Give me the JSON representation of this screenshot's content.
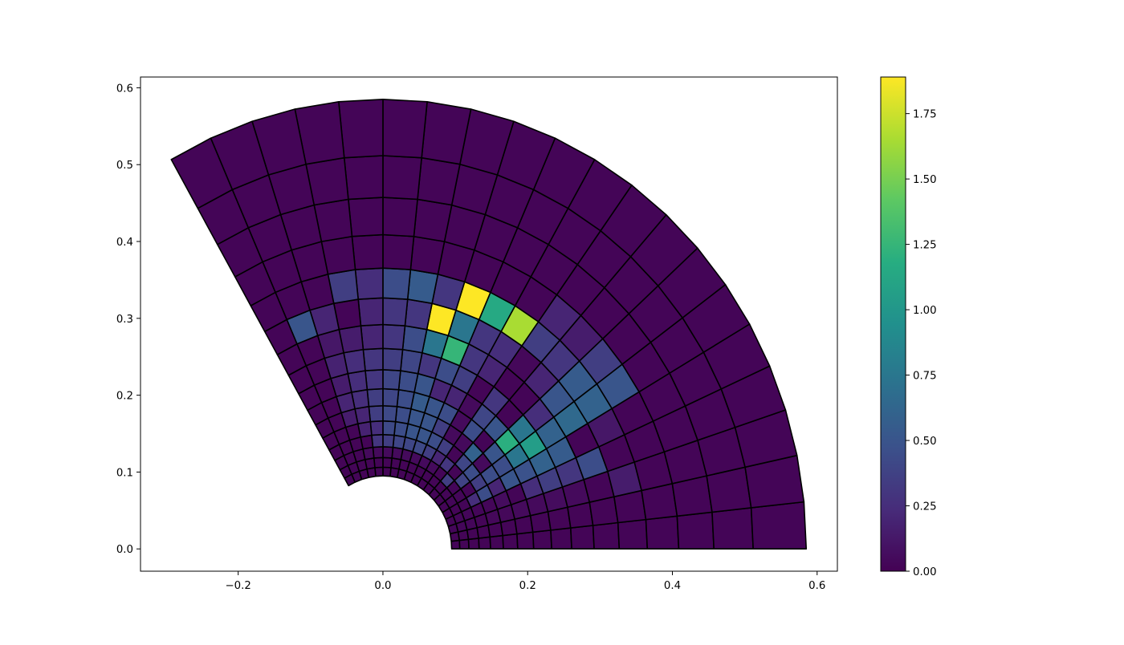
{
  "chart_data": {
    "type": "heatmap",
    "title": "",
    "xlabel": "",
    "ylabel": "",
    "xlim": [
      -0.335,
      0.628
    ],
    "ylim": [
      -0.029,
      0.614
    ],
    "x_ticks": [
      "−0.2",
      "0.0",
      "0.2",
      "0.4",
      "0.6"
    ],
    "x_tick_values": [
      -0.2,
      0.0,
      0.2,
      0.4,
      0.6
    ],
    "y_ticks": [
      "0.0",
      "0.1",
      "0.2",
      "0.3",
      "0.4",
      "0.5",
      "0.6"
    ],
    "y_tick_values": [
      0.0,
      0.1,
      0.2,
      0.3,
      0.4,
      0.5,
      0.6
    ],
    "grid": false,
    "colormap": "viridis",
    "edge_color": "#000000",
    "colorbar": {
      "min": 0.0,
      "max": 1.89,
      "ticks": [
        "0.00",
        "0.25",
        "0.50",
        "0.75",
        "1.00",
        "1.25",
        "1.50",
        "1.75"
      ],
      "tick_values": [
        0.0,
        0.25,
        0.5,
        0.75,
        1.0,
        1.25,
        1.5,
        1.75
      ]
    },
    "mesh": {
      "shape": "annular sector",
      "r_inner": 0.095,
      "r_outer": 0.585,
      "theta_start_deg": 0,
      "theta_end_deg": 120,
      "n_theta": 20,
      "r_edges": [
        0.095,
        0.1063,
        0.1189,
        0.133,
        0.1488,
        0.1665,
        0.1863,
        0.2084,
        0.2332,
        0.2609,
        0.2919,
        0.3266,
        0.3654,
        0.4088,
        0.4574,
        0.5117,
        0.585
      ]
    },
    "cell_values": [
      [
        0.02,
        0.02,
        0.03,
        0.02,
        0.02,
        0.02,
        0.02,
        0.02,
        0.02,
        0.02,
        0.02,
        0.02,
        0.02,
        0.02,
        0.02,
        0.02,
        0.02,
        0.02,
        0.02,
        0.02
      ],
      [
        0.02,
        0.02,
        0.03,
        0.03,
        0.02,
        0.03,
        0.02,
        0.02,
        0.02,
        0.02,
        0.02,
        0.02,
        0.02,
        0.02,
        0.02,
        0.02,
        0.02,
        0.02,
        0.02,
        0.02
      ],
      [
        0.02,
        0.02,
        0.03,
        0.03,
        0.02,
        0.03,
        0.03,
        0.35,
        0.02,
        0.05,
        0.05,
        0.05,
        0.05,
        0.05,
        0.05,
        0.05,
        0.05,
        0.02,
        0.02,
        0.02
      ],
      [
        0.02,
        0.02,
        0.02,
        0.03,
        0.25,
        0.02,
        0.38,
        0.02,
        0.3,
        0.2,
        0.35,
        0.42,
        0.4,
        0.4,
        0.35,
        0.3,
        0.02,
        0.02,
        0.02,
        0.02
      ],
      [
        0.02,
        0.02,
        0.04,
        0.03,
        0.45,
        0.35,
        0.45,
        0.4,
        0.02,
        0.35,
        0.45,
        0.5,
        0.5,
        0.45,
        0.42,
        0.25,
        0.18,
        0.02,
        0.02,
        0.02
      ],
      [
        0.02,
        0.02,
        0.04,
        0.06,
        0.2,
        0.45,
        0.05,
        0.6,
        0.05,
        0.05,
        0.35,
        0.5,
        0.5,
        0.45,
        0.42,
        0.35,
        0.2,
        0.15,
        0.02,
        0.02
      ],
      [
        0.02,
        0.02,
        0.05,
        0.02,
        0.5,
        0.45,
        0.5,
        0.02,
        0.45,
        0.05,
        0.45,
        0.5,
        0.55,
        0.45,
        0.4,
        0.35,
        0.25,
        0.2,
        0.02,
        0.02
      ],
      [
        0.02,
        0.02,
        0.05,
        0.25,
        0.48,
        0.75,
        1.2,
        0.5,
        0.4,
        0.05,
        0.2,
        0.2,
        0.5,
        0.45,
        0.4,
        0.3,
        0.25,
        0.15,
        0.02,
        0.02
      ],
      [
        0.02,
        0.02,
        0.06,
        0.35,
        0.6,
        1.05,
        0.75,
        0.02,
        0.3,
        0.02,
        0.35,
        0.45,
        0.3,
        0.4,
        0.35,
        0.3,
        0.25,
        0.18,
        0.02,
        0.02
      ],
      [
        0.02,
        0.02,
        0.05,
        0.3,
        0.55,
        0.6,
        0.25,
        0.02,
        0.02,
        0.2,
        0.3,
        1.25,
        0.75,
        0.45,
        0.3,
        0.2,
        0.15,
        0.12,
        0.02,
        0.02
      ],
      [
        0.02,
        0.02,
        0.02,
        0.45,
        0.02,
        0.65,
        0.5,
        0.2,
        0.04,
        0.25,
        0.3,
        0.75,
        1.89,
        0.3,
        0.3,
        0.2,
        0.02,
        0.2,
        0.5,
        0.02
      ],
      [
        0.02,
        0.02,
        0.15,
        0.02,
        0.12,
        0.6,
        0.55,
        0.3,
        0.35,
        1.65,
        1.15,
        1.89,
        0.3,
        0.55,
        0.45,
        0.25,
        0.35,
        0.02,
        0.02,
        0.02
      ],
      [
        0.02,
        0.02,
        0.02,
        0.02,
        0.02,
        0.5,
        0.35,
        0.15,
        0.2,
        0.02,
        0.02,
        0.02,
        0.02,
        0.02,
        0.02,
        0.02,
        0.02,
        0.02,
        0.02,
        0.02
      ],
      [
        0.02,
        0.02,
        0.02,
        0.02,
        0.02,
        0.02,
        0.02,
        0.02,
        0.02,
        0.02,
        0.02,
        0.02,
        0.02,
        0.02,
        0.02,
        0.02,
        0.02,
        0.02,
        0.02,
        0.02
      ],
      [
        0.02,
        0.02,
        0.02,
        0.02,
        0.02,
        0.02,
        0.02,
        0.02,
        0.02,
        0.02,
        0.02,
        0.02,
        0.02,
        0.02,
        0.02,
        0.02,
        0.02,
        0.02,
        0.02,
        0.02
      ],
      [
        0.02,
        0.02,
        0.02,
        0.02,
        0.02,
        0.02,
        0.02,
        0.02,
        0.02,
        0.02,
        0.02,
        0.02,
        0.02,
        0.02,
        0.02,
        0.02,
        0.02,
        0.02,
        0.02,
        0.02
      ]
    ]
  }
}
